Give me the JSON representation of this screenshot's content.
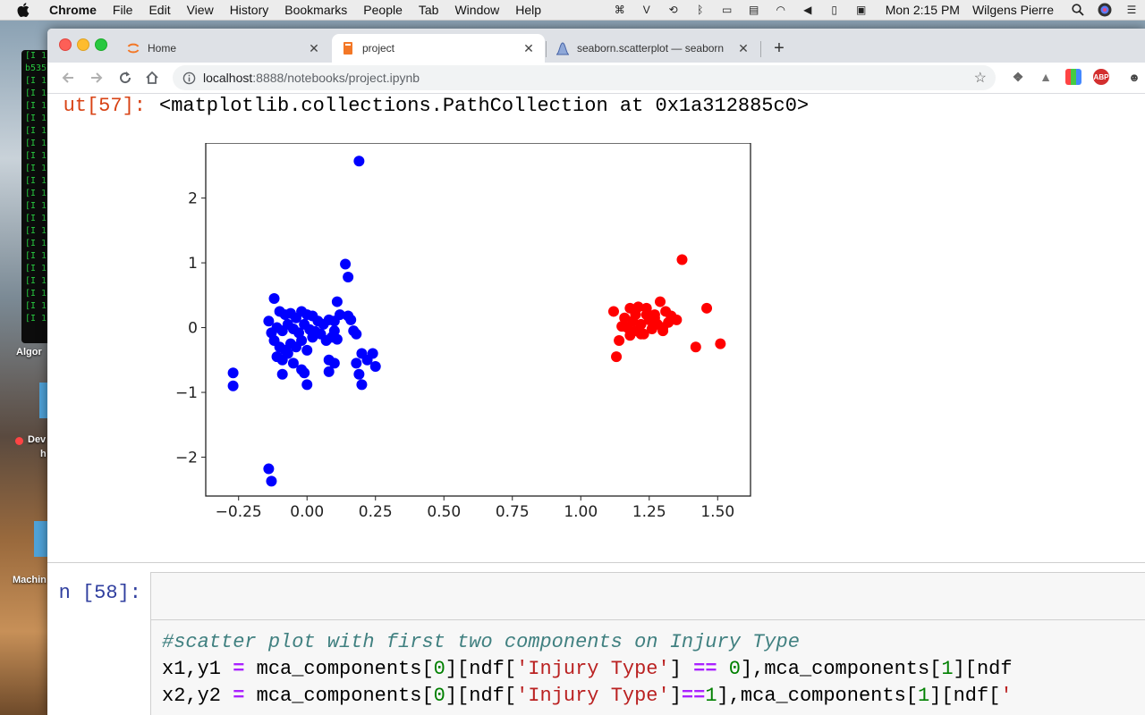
{
  "menubar": {
    "app": "Chrome",
    "items": [
      "File",
      "Edit",
      "View",
      "History",
      "Bookmarks",
      "People",
      "Tab",
      "Window",
      "Help"
    ],
    "clock": "Mon 2:15 PM",
    "user": "Wilgens Pierre"
  },
  "desktop": {
    "terminal_lines": [
      "[I 1",
      "b535",
      "[I 1",
      "[I 1",
      "[I 1",
      "[I 1",
      "[I 1",
      "[I 1",
      "[I 1",
      "[I 1",
      "[I 1",
      "[I 1",
      "[I 1",
      "[I 1",
      "[I 1",
      "[I 1",
      "[I 1",
      "[I 1",
      "[I 1",
      "[I 1",
      "[I 1",
      "[I 1"
    ],
    "label_algo": "Algor",
    "label_dev": "Dev",
    "label_dev2": "h",
    "label_machine": "Machin"
  },
  "tabs": [
    {
      "title": "Home",
      "active": false
    },
    {
      "title": "project",
      "active": true
    },
    {
      "title": "seaborn.scatterplot — seaborn",
      "active": false
    }
  ],
  "toolbar": {
    "url_host": "localhost",
    "url_path": ":8888/notebooks/project.ipynb"
  },
  "notebook": {
    "out_prompt": "ut[57]:",
    "out_text": "<matplotlib.collections.PathCollection at 0x1a312885c0>",
    "in_prompt": "n [58]:",
    "code": {
      "comment": "#scatter plot with first two components on Injury Type",
      "line2": {
        "a": "x1,y1 ",
        "op": "=",
        "b": " mca_components[",
        "n1": "0",
        "c": "][ndf[",
        "s1": "'Injury Type'",
        "d": "] ",
        "op2": "==",
        "e": " ",
        "n2": "0",
        "f": "],mca_components[",
        "n3": "1",
        "g": "][ndf"
      },
      "line3": {
        "a": "x2,y2 ",
        "op": "=",
        "b": " mca_components[",
        "n1": "0",
        "c": "][ndf[",
        "s1": "'Injury Type'",
        "d": "]",
        "op2": "==",
        "n2": "1",
        "f": "],mca_components[",
        "n3": "1",
        "g": "][ndf[",
        "s2": "'"
      }
    }
  },
  "chart_data": {
    "type": "scatter",
    "title": "",
    "xlabel": "",
    "ylabel": "",
    "xlim": [
      -0.37,
      1.62
    ],
    "ylim": [
      -2.6,
      2.85
    ],
    "xticks": [
      -0.25,
      0.0,
      0.25,
      0.5,
      0.75,
      1.0,
      1.25,
      1.5
    ],
    "xtick_labels": [
      "−0.25",
      "0.00",
      "0.25",
      "0.50",
      "0.75",
      "1.00",
      "1.25",
      "1.50"
    ],
    "yticks": [
      -2,
      -1,
      0,
      1,
      2
    ],
    "ytick_labels": [
      "−2",
      "−1",
      "0",
      "1",
      "2"
    ],
    "grid": false,
    "series": [
      {
        "color": "#0000ff",
        "points": [
          [
            0.19,
            2.57
          ],
          [
            0.14,
            0.98
          ],
          [
            0.15,
            0.78
          ],
          [
            0.11,
            0.4
          ],
          [
            -0.12,
            0.45
          ],
          [
            0.12,
            0.2
          ],
          [
            0.15,
            0.18
          ],
          [
            -0.14,
            0.1
          ],
          [
            -0.1,
            0.25
          ],
          [
            -0.08,
            0.2
          ],
          [
            -0.06,
            0.22
          ],
          [
            -0.04,
            0.15
          ],
          [
            -0.02,
            0.25
          ],
          [
            0.0,
            0.2
          ],
          [
            0.02,
            0.18
          ],
          [
            0.04,
            0.1
          ],
          [
            0.06,
            0.05
          ],
          [
            0.08,
            0.12
          ],
          [
            0.1,
            -0.05
          ],
          [
            0.1,
            0.1
          ],
          [
            0.16,
            0.12
          ],
          [
            0.17,
            -0.05
          ],
          [
            0.18,
            -0.1
          ],
          [
            -0.13,
            -0.08
          ],
          [
            -0.11,
            0.0
          ],
          [
            -0.09,
            -0.05
          ],
          [
            -0.07,
            0.05
          ],
          [
            -0.05,
            -0.02
          ],
          [
            -0.03,
            -0.08
          ],
          [
            -0.01,
            0.05
          ],
          [
            0.01,
            -0.03
          ],
          [
            0.03,
            -0.06
          ],
          [
            0.05,
            -0.1
          ],
          [
            0.07,
            -0.2
          ],
          [
            0.09,
            -0.15
          ],
          [
            0.11,
            -0.18
          ],
          [
            -0.12,
            -0.2
          ],
          [
            -0.1,
            -0.3
          ],
          [
            -0.08,
            -0.35
          ],
          [
            -0.06,
            -0.25
          ],
          [
            -0.04,
            -0.3
          ],
          [
            -0.02,
            -0.2
          ],
          [
            0.0,
            -0.35
          ],
          [
            0.02,
            -0.15
          ],
          [
            -0.11,
            -0.45
          ],
          [
            -0.09,
            -0.5
          ],
          [
            -0.07,
            -0.4
          ],
          [
            -0.05,
            -0.55
          ],
          [
            0.08,
            -0.5
          ],
          [
            0.1,
            -0.55
          ],
          [
            0.18,
            -0.55
          ],
          [
            0.2,
            -0.4
          ],
          [
            0.22,
            -0.5
          ],
          [
            0.24,
            -0.4
          ],
          [
            0.25,
            -0.6
          ],
          [
            0.19,
            -0.72
          ],
          [
            -0.09,
            -0.72
          ],
          [
            -0.02,
            -0.65
          ],
          [
            -0.01,
            -0.7
          ],
          [
            0.08,
            -0.68
          ],
          [
            0.0,
            -0.88
          ],
          [
            0.2,
            -0.88
          ],
          [
            -0.27,
            -0.7
          ],
          [
            -0.27,
            -0.9
          ],
          [
            -0.14,
            -2.18
          ],
          [
            -0.13,
            -2.37
          ]
        ]
      },
      {
        "color": "#ff0000",
        "points": [
          [
            1.37,
            1.05
          ],
          [
            1.12,
            0.25
          ],
          [
            1.18,
            0.3
          ],
          [
            1.21,
            0.32
          ],
          [
            1.24,
            0.3
          ],
          [
            1.27,
            0.2
          ],
          [
            1.29,
            0.4
          ],
          [
            1.31,
            0.25
          ],
          [
            1.46,
            0.3
          ],
          [
            1.16,
            0.15
          ],
          [
            1.19,
            0.1
          ],
          [
            1.22,
            0.05
          ],
          [
            1.25,
            0.12
          ],
          [
            1.28,
            0.05
          ],
          [
            1.3,
            0.0
          ],
          [
            1.33,
            0.18
          ],
          [
            1.35,
            0.12
          ],
          [
            1.17,
            0.0
          ],
          [
            1.2,
            -0.05
          ],
          [
            1.23,
            -0.1
          ],
          [
            1.26,
            -0.02
          ],
          [
            1.3,
            -0.05
          ],
          [
            1.14,
            -0.2
          ],
          [
            1.18,
            -0.12
          ],
          [
            1.22,
            -0.1
          ],
          [
            1.42,
            -0.3
          ],
          [
            1.51,
            -0.25
          ],
          [
            1.13,
            -0.45
          ],
          [
            1.24,
            0.2
          ],
          [
            1.27,
            0.15
          ],
          [
            1.32,
            0.08
          ],
          [
            1.2,
            0.2
          ],
          [
            1.15,
            0.02
          ]
        ]
      }
    ]
  }
}
